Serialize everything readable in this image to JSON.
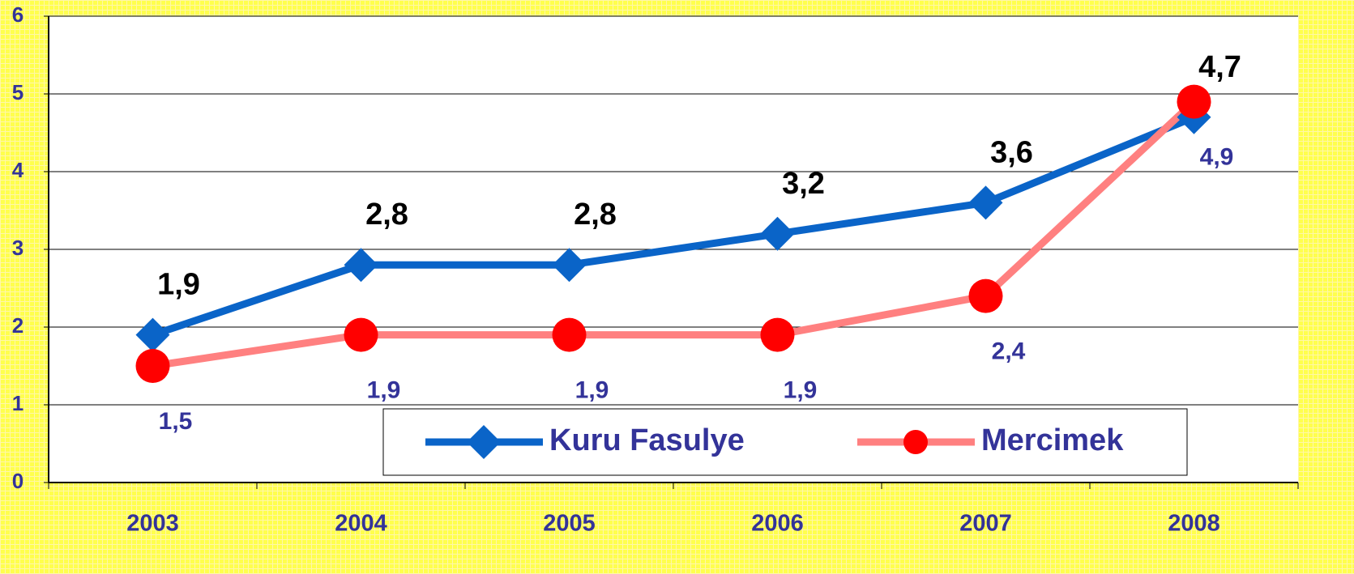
{
  "chart_data": {
    "type": "line",
    "categories": [
      "2003",
      "2004",
      "2005",
      "2006",
      "2007",
      "2008"
    ],
    "series": [
      {
        "name": "Kuru Fasulye",
        "color": "#0a64c8",
        "marker": "diamond",
        "values": [
          1.9,
          2.8,
          2.8,
          3.2,
          3.6,
          4.7
        ],
        "value_labels": [
          "1,9",
          "2,8",
          "2,8",
          "3,2",
          "3,6",
          "4,7"
        ]
      },
      {
        "name": "Mercimek",
        "color": "#ff8080",
        "marker": "circle",
        "marker_color": "#ff0000",
        "values": [
          1.5,
          1.9,
          1.9,
          1.9,
          2.4,
          4.9
        ],
        "value_labels": [
          "1,5",
          "1,9",
          "1,9",
          "1,9",
          "2,4",
          "4,9"
        ]
      }
    ],
    "ylim": [
      0,
      6
    ],
    "yticks": [
      0,
      1,
      2,
      3,
      4,
      5,
      6
    ],
    "grid": true,
    "legend": "bottom"
  }
}
